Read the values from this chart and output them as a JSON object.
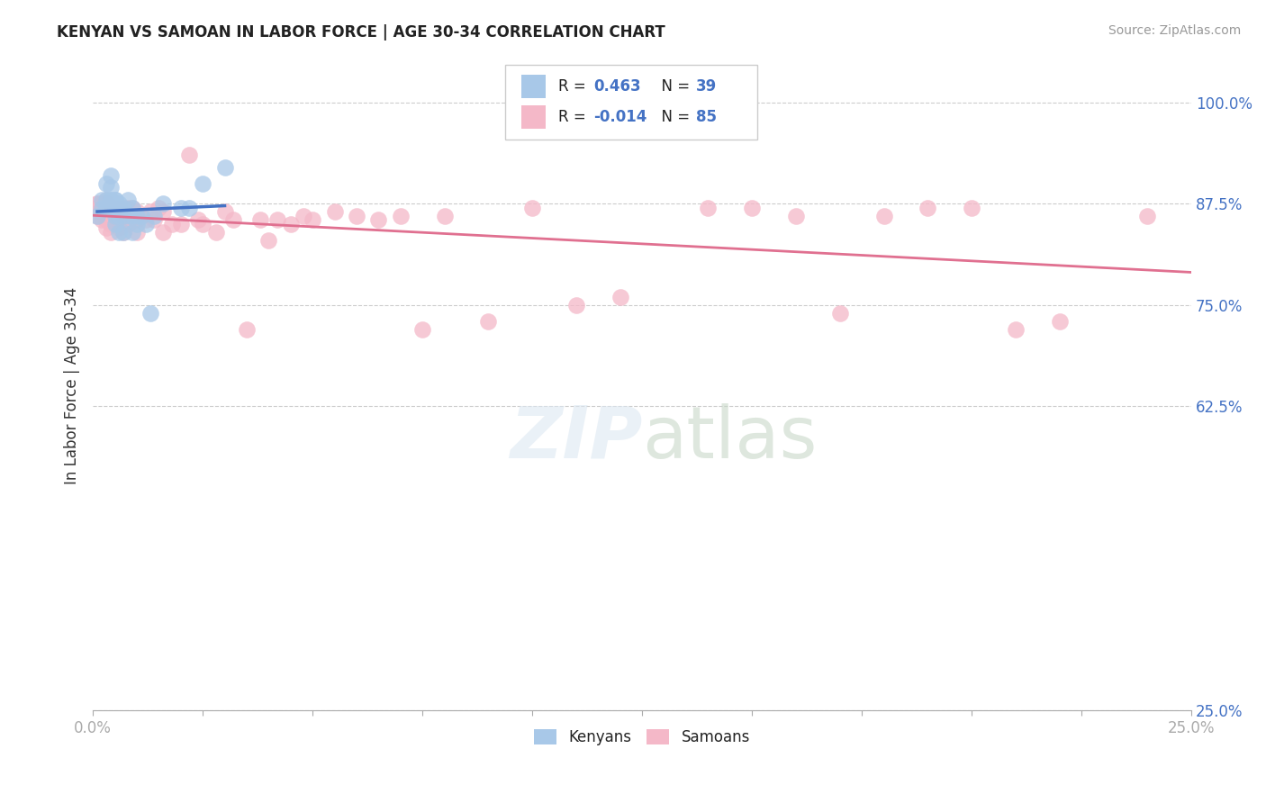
{
  "title": "KENYAN VS SAMOAN IN LABOR FORCE | AGE 30-34 CORRELATION CHART",
  "source": "Source: ZipAtlas.com",
  "ylabel": "In Labor Force | Age 30-34",
  "background_color": "#ffffff",
  "kenyan_color": "#a8c8e8",
  "samoan_color": "#f4b8c8",
  "kenyan_line_color": "#4472c4",
  "samoan_line_color": "#e07090",
  "R_kenyan": 0.463,
  "N_kenyan": 39,
  "R_samoan": -0.014,
  "N_samoan": 85,
  "xlim": [
    0.0,
    0.25
  ],
  "ylim": [
    0.25,
    1.05
  ],
  "yticks": [
    0.25,
    0.625,
    0.75,
    0.875,
    1.0
  ],
  "ytick_labels": [
    "25.0%",
    "62.5%",
    "75.0%",
    "87.5%",
    "100.0%"
  ],
  "xtick_right_label": "25.0%",
  "xtick_left_label": "0.0%",
  "kenyan_x": [
    0.001,
    0.002,
    0.002,
    0.003,
    0.003,
    0.003,
    0.004,
    0.004,
    0.004,
    0.004,
    0.005,
    0.005,
    0.005,
    0.005,
    0.005,
    0.005,
    0.006,
    0.006,
    0.006,
    0.006,
    0.007,
    0.007,
    0.007,
    0.008,
    0.008,
    0.009,
    0.009,
    0.009,
    0.01,
    0.01,
    0.011,
    0.012,
    0.013,
    0.014,
    0.016,
    0.02,
    0.022,
    0.025,
    0.03
  ],
  "kenyan_y": [
    0.86,
    0.87,
    0.88,
    0.87,
    0.88,
    0.9,
    0.88,
    0.88,
    0.895,
    0.91,
    0.85,
    0.86,
    0.87,
    0.87,
    0.88,
    0.88,
    0.84,
    0.86,
    0.87,
    0.875,
    0.84,
    0.86,
    0.87,
    0.86,
    0.88,
    0.84,
    0.86,
    0.87,
    0.85,
    0.86,
    0.86,
    0.85,
    0.74,
    0.86,
    0.875,
    0.87,
    0.87,
    0.9,
    0.92
  ],
  "samoan_x": [
    0.001,
    0.001,
    0.001,
    0.001,
    0.001,
    0.002,
    0.002,
    0.002,
    0.002,
    0.002,
    0.002,
    0.003,
    0.003,
    0.003,
    0.003,
    0.003,
    0.003,
    0.003,
    0.004,
    0.004,
    0.004,
    0.004,
    0.004,
    0.004,
    0.005,
    0.005,
    0.005,
    0.006,
    0.006,
    0.006,
    0.006,
    0.007,
    0.007,
    0.007,
    0.007,
    0.008,
    0.008,
    0.008,
    0.009,
    0.009,
    0.01,
    0.01,
    0.01,
    0.011,
    0.012,
    0.013,
    0.014,
    0.015,
    0.016,
    0.016,
    0.018,
    0.02,
    0.022,
    0.024,
    0.025,
    0.028,
    0.03,
    0.032,
    0.035,
    0.038,
    0.04,
    0.042,
    0.045,
    0.048,
    0.05,
    0.055,
    0.06,
    0.065,
    0.07,
    0.075,
    0.08,
    0.09,
    0.1,
    0.11,
    0.12,
    0.14,
    0.15,
    0.16,
    0.17,
    0.18,
    0.19,
    0.2,
    0.21,
    0.22,
    0.24
  ],
  "samoan_y": [
    0.875,
    0.875,
    0.87,
    0.87,
    0.86,
    0.875,
    0.875,
    0.87,
    0.865,
    0.86,
    0.855,
    0.88,
    0.875,
    0.87,
    0.865,
    0.86,
    0.855,
    0.845,
    0.87,
    0.865,
    0.86,
    0.855,
    0.85,
    0.84,
    0.87,
    0.865,
    0.855,
    0.87,
    0.86,
    0.855,
    0.845,
    0.87,
    0.86,
    0.855,
    0.84,
    0.87,
    0.86,
    0.85,
    0.87,
    0.855,
    0.865,
    0.855,
    0.84,
    0.86,
    0.855,
    0.865,
    0.855,
    0.87,
    0.865,
    0.84,
    0.85,
    0.85,
    0.935,
    0.855,
    0.85,
    0.84,
    0.865,
    0.855,
    0.72,
    0.855,
    0.83,
    0.855,
    0.85,
    0.86,
    0.855,
    0.865,
    0.86,
    0.855,
    0.86,
    0.72,
    0.86,
    0.73,
    0.87,
    0.75,
    0.76,
    0.87,
    0.87,
    0.86,
    0.74,
    0.86,
    0.87,
    0.87,
    0.72,
    0.73,
    0.86
  ]
}
